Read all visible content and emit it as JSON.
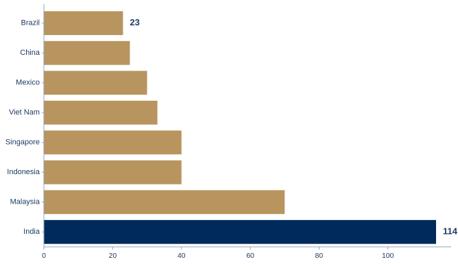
{
  "chart_data": {
    "type": "bar",
    "orientation": "horizontal",
    "categories": [
      "India",
      "Malaysia",
      "Indonesia",
      "Singapore",
      "Viet Nam",
      "Mexico",
      "China",
      "Brazil"
    ],
    "values": [
      114,
      70,
      40,
      40,
      33,
      30,
      25,
      23
    ],
    "data_labels": [
      {
        "category": "India",
        "text": "114"
      },
      {
        "category": "Brazil",
        "text": "23"
      }
    ],
    "xlim": [
      0,
      115
    ],
    "xticks": [
      0,
      20,
      40,
      60,
      80,
      100
    ],
    "title": "",
    "xlabel": "",
    "ylabel": "",
    "grid": false,
    "legend": "none",
    "colors": {
      "bar": "#b8945f",
      "highlight_bar": "#002a5c",
      "highlight_category": "India",
      "axis": "#8fa3bf",
      "text": "#1f3a63"
    }
  }
}
